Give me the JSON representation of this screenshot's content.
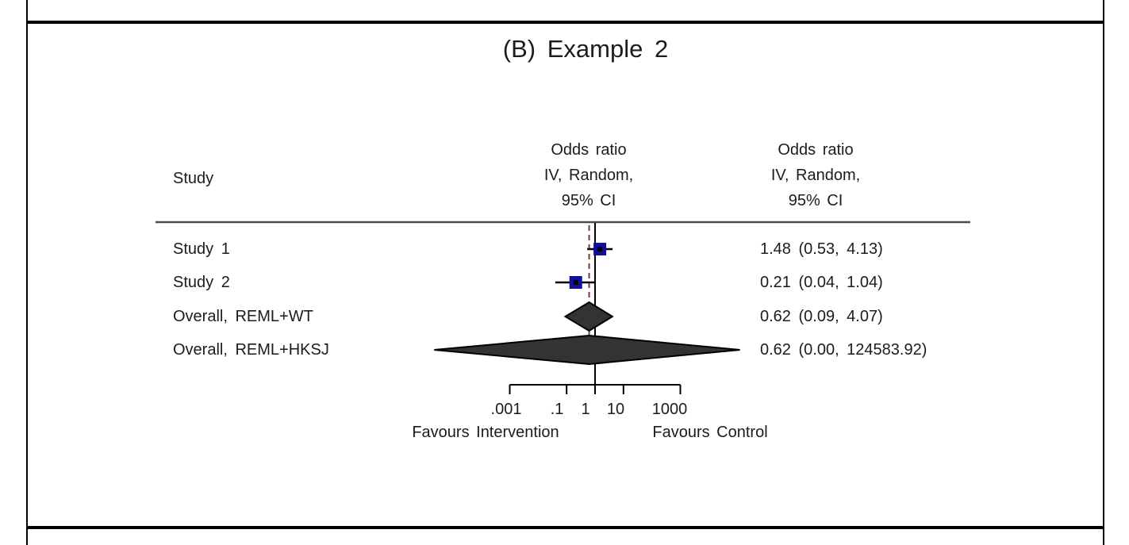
{
  "figure": {
    "panel_label": "(B)",
    "title": "(B) Example 2"
  },
  "table": {
    "study_header": "Study",
    "effect_header_plot": "Odds ratio\nIV, Random,\n95% CI",
    "effect_header_text": "Odds ratio\nIV, Random,\n95% CI"
  },
  "chart_data": {
    "type": "forest",
    "title": "(B) Example 2",
    "effect_measure": "Odds ratio",
    "model": "IV, Random, 95% CI",
    "x_scale": "log",
    "x_ticks": [
      0.001,
      0.1,
      1,
      10,
      1000
    ],
    "tick_labels": [
      ".001",
      ".1",
      "1",
      "10",
      "1000"
    ],
    "null_line_x": 1,
    "overall_dashed_line_x": 0.62,
    "favours_left": "Favours Intervention",
    "favours_right": "Favours Control",
    "rows": [
      {
        "label": "Study 1",
        "kind": "study",
        "est": 1.48,
        "lo": 0.53,
        "hi": 4.13,
        "ci_text": "1.48 (0.53, 4.13)"
      },
      {
        "label": "Study 2",
        "kind": "study",
        "est": 0.21,
        "lo": 0.04,
        "hi": 1.04,
        "ci_text": "0.21 (0.04, 1.04)"
      },
      {
        "label": "Overall, REML+WT",
        "kind": "overall",
        "est": 0.62,
        "lo": 0.09,
        "hi": 4.07,
        "ci_text": "0.62 (0.09, 4.07)"
      },
      {
        "label": "Overall, REML+HKSJ",
        "kind": "overall",
        "est": 0.62,
        "lo": 0.0,
        "hi": 124583.92,
        "ci_text": "0.62 (0.00, 124583.92)"
      }
    ],
    "colors": {
      "marker": "#10109a",
      "marker_center": "#000000",
      "diamond_fill": "#333333",
      "diamond_stroke": "#000000",
      "whisker": "#000000",
      "null_line": "#000000",
      "dashed_line": "#7e3a3a",
      "axis": "#000000",
      "separator": "#4a4a4a",
      "text": "#1c1c1c"
    },
    "layout_hints": {
      "legend": "none",
      "grid": false,
      "zero_lower_bound_plot_value": 2.2e-06,
      "axis_range": [
        0.001,
        1000
      ]
    }
  }
}
